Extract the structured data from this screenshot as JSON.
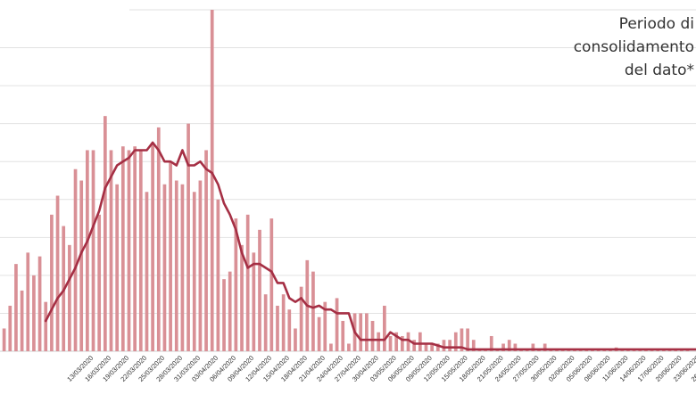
{
  "colors": {
    "bar": "#d99096",
    "line": "#a52f44",
    "grid": "#e2e2e2",
    "tick": "#333333"
  },
  "annotation": [
    "Periodo di",
    "consolidamento",
    "del dato*"
  ],
  "chart_data": {
    "type": "bar",
    "title": "",
    "xlabel": "",
    "ylabel": "",
    "x_range": [
      "2020-02-26",
      "2020-06-29"
    ],
    "ylim": [
      0,
      9
    ],
    "grid": true,
    "y_tick_labels_visible": false,
    "x_tick_labels": [
      "13/03/2020",
      "16/03/2020",
      "19/03/2020",
      "22/03/2020",
      "25/03/2020",
      "28/03/2020",
      "31/03/2020",
      "03/04/2020",
      "06/04/2020",
      "09/04/2020",
      "12/04/2020",
      "15/04/2020",
      "18/04/2020",
      "21/04/2020",
      "24/04/2020",
      "27/04/2020",
      "30/04/2020",
      "03/05/2020",
      "06/05/2020",
      "09/05/2020",
      "12/05/2020",
      "15/05/2020",
      "18/05/2020",
      "21/05/2020",
      "24/05/2020",
      "27/05/2020",
      "30/05/2020",
      "02/06/2020",
      "05/06/2020",
      "08/06/2020",
      "11/06/2020",
      "14/06/2020",
      "17/06/2020",
      "20/06/2020",
      "23/06/2020",
      "26/06/2020",
      "29/06/2020"
    ],
    "series": [
      {
        "type": "bar",
        "values": [
          0.1,
          0.2,
          0.6,
          1.2,
          2.3,
          1.6,
          2.6,
          2.0,
          2.5,
          1.3,
          3.6,
          4.1,
          3.3,
          2.8,
          4.8,
          4.5,
          5.3,
          5.3,
          3.6,
          6.2,
          5.3,
          4.4,
          5.4,
          5.3,
          5.4,
          5.3,
          4.2,
          5.5,
          5.9,
          4.4,
          5.0,
          4.5,
          4.4,
          6.0,
          4.2,
          4.5,
          5.3,
          9.0,
          4.0,
          1.9,
          2.1,
          3.5,
          2.8,
          3.6,
          2.6,
          3.2,
          1.5,
          3.5,
          1.2,
          1.5,
          1.1,
          0.6,
          1.7,
          2.4,
          2.1,
          0.9,
          1.3,
          0.2,
          1.4,
          0.8,
          0.2,
          1.0,
          1.0,
          1.0,
          0.8,
          0.5,
          1.2,
          0.4,
          0.5,
          0.4,
          0.5,
          0.3,
          0.5,
          0.2,
          0.2,
          0.2,
          0.3,
          0.3,
          0.5,
          0.6,
          0.6,
          0.3,
          0.05,
          0.05,
          0.4,
          0.05,
          0.2,
          0.3,
          0.2,
          0.05,
          0.05,
          0.2,
          0.05,
          0.2,
          0.05,
          0.05,
          0.05,
          0.05,
          0.05,
          0.05,
          0.05,
          0.05,
          0.05,
          0.05,
          0.05,
          0.1,
          0.05,
          0.05,
          0.05,
          0.05,
          0.05,
          0.05,
          0.05,
          0.05,
          0.05,
          0.05,
          0.05,
          0.05
        ]
      },
      {
        "type": "line",
        "x_start": "2020-03-06",
        "values": [
          0.8,
          1.1,
          1.4,
          1.6,
          1.9,
          2.2,
          2.6,
          2.9,
          3.3,
          3.7,
          4.3,
          4.6,
          4.9,
          5.0,
          5.1,
          5.3,
          5.3,
          5.3,
          5.5,
          5.3,
          5.0,
          5.0,
          4.9,
          5.3,
          4.9,
          4.9,
          5.0,
          4.8,
          4.7,
          4.4,
          3.9,
          3.6,
          3.2,
          2.6,
          2.2,
          2.3,
          2.3,
          2.2,
          2.1,
          1.8,
          1.8,
          1.4,
          1.3,
          1.4,
          1.2,
          1.15,
          1.2,
          1.1,
          1.1,
          1.0,
          1.0,
          1.0,
          0.5,
          0.3,
          0.3,
          0.3,
          0.3,
          0.3,
          0.5,
          0.4,
          0.3,
          0.3,
          0.2,
          0.2,
          0.2,
          0.2,
          0.15,
          0.1,
          0.1,
          0.1,
          0.1,
          0.05,
          0.05,
          0.05,
          0.05,
          0.05,
          0.05,
          0.05,
          0.05,
          0.05,
          0.05,
          0.05,
          0.05,
          0.05,
          0.05,
          0.05,
          0.05,
          0.05,
          0.05,
          0.05,
          0.05,
          0.05,
          0.05,
          0.05,
          0.05,
          0.05,
          0.05,
          0.05,
          0.05,
          0.05,
          0.05,
          0.05,
          0.05,
          0.05,
          0.05,
          0.05,
          0.05,
          0.05,
          0.05,
          0.05,
          0.05,
          0.05,
          0.05,
          0.05,
          0.05
        ]
      }
    ]
  }
}
